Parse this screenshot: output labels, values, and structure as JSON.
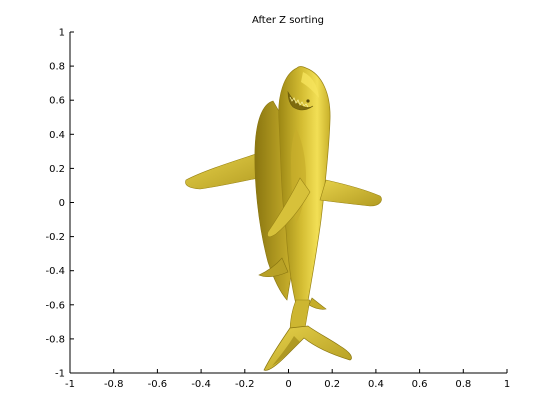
{
  "chart_data": {
    "type": "3d-surface",
    "title": "After Z sorting",
    "xlim": [
      -1,
      1
    ],
    "ylim": [
      -1,
      1
    ],
    "xticks": [
      -1,
      -0.8,
      -0.6,
      -0.4,
      -0.2,
      0,
      0.2,
      0.4,
      0.6,
      0.8,
      1
    ],
    "yticks": [
      -1,
      -0.8,
      -0.6,
      -0.4,
      -0.2,
      0,
      0.2,
      0.4,
      0.6,
      0.8,
      1
    ],
    "xticklabels": [
      "-1",
      "-0.8",
      "-0.6",
      "-0.4",
      "-0.2",
      "0",
      "0.2",
      "0.4",
      "0.6",
      "0.8",
      "1"
    ],
    "yticklabels": [
      "-1",
      "-0.8",
      "-0.6",
      "-0.4",
      "-0.2",
      "0",
      "0.2",
      "0.4",
      "0.6",
      "0.8",
      "1"
    ],
    "grid": false,
    "box": false,
    "surface": {
      "subject": "shark",
      "face_color": "#d9c23a",
      "highlight_color": "#f4e25a",
      "shadow_color": "#8f7c12"
    }
  }
}
